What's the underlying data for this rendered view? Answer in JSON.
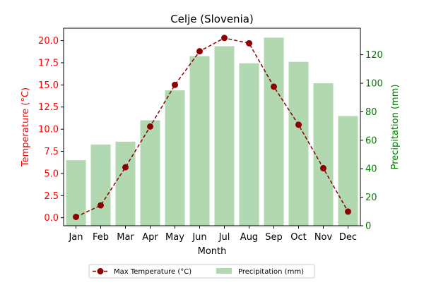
{
  "chart_data": {
    "type": "bar+line",
    "title": "Celje (Slovenia)",
    "xlabel": "Month",
    "categories": [
      "Jan",
      "Feb",
      "Mar",
      "Apr",
      "May",
      "Jun",
      "Jul",
      "Aug",
      "Sep",
      "Oct",
      "Nov",
      "Dec"
    ],
    "left_axis": {
      "label": "Temperature (°C)",
      "color": "#ff0000",
      "ylim": [
        -0.9,
        21.4
      ],
      "ticks": [
        0.0,
        2.5,
        5.0,
        7.5,
        10.0,
        12.5,
        15.0,
        17.5,
        20.0
      ],
      "tick_labels": [
        "0.0",
        "2.5",
        "5.0",
        "7.5",
        "10.0",
        "12.5",
        "15.0",
        "17.5",
        "20.0"
      ]
    },
    "right_axis": {
      "label": "Precipitation (mm)",
      "color": "#008000",
      "ylim": [
        0,
        138.6
      ],
      "ticks": [
        0,
        20,
        40,
        60,
        80,
        100,
        120
      ],
      "tick_labels": [
        "0",
        "20",
        "40",
        "60",
        "80",
        "100",
        "120"
      ]
    },
    "series": [
      {
        "name": "Max Temperature (°C)",
        "kind": "line",
        "axis": "left",
        "color": "#8b0000",
        "line_style": "dashed",
        "marker": "circle",
        "values": [
          0.1,
          1.4,
          5.7,
          10.3,
          15.0,
          18.8,
          20.3,
          19.7,
          14.8,
          10.5,
          5.6,
          0.7
        ]
      },
      {
        "name": "Precipitation (mm)",
        "kind": "bar",
        "axis": "right",
        "color": "#b2d8b2",
        "values": [
          46,
          57,
          59,
          74,
          95,
          119,
          126,
          114,
          132,
          115,
          100,
          77
        ]
      }
    ],
    "legend": {
      "placement": "bottom-center",
      "columns": 2
    },
    "grid": false
  }
}
